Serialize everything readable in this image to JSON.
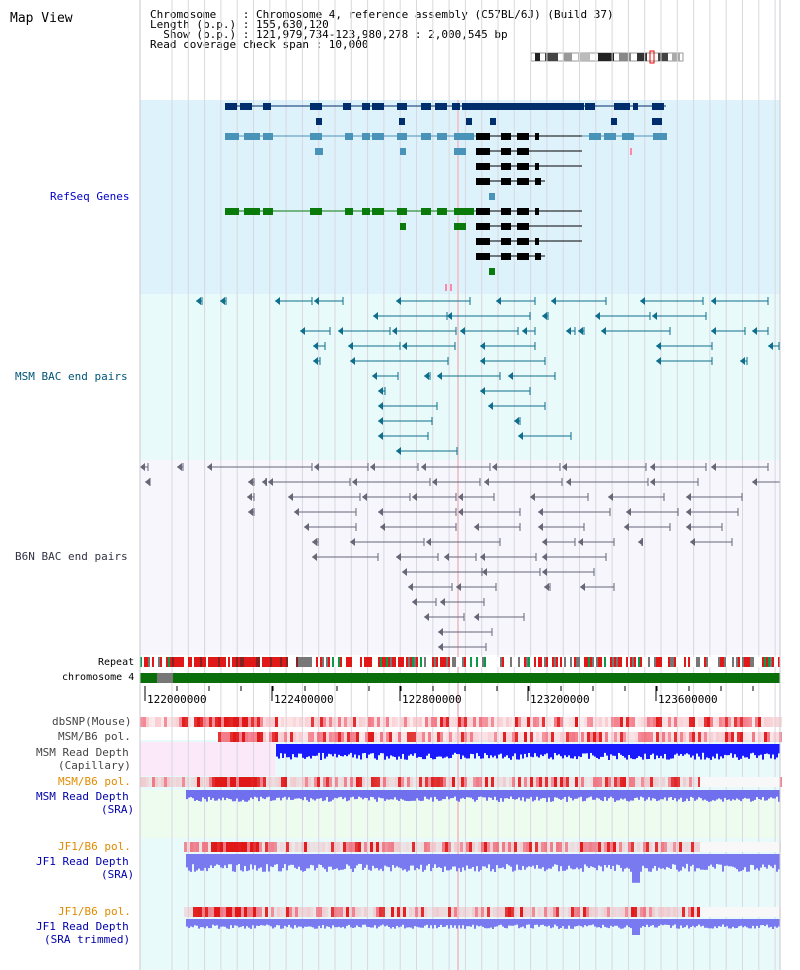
{
  "view": {
    "title": "Map View",
    "info": {
      "chromosome": "Chromosome    : Chromosome 4, reference assembly (C57BL/6J) (Build 37)",
      "length": "Length (b.p.) : 155,630,120",
      "show": "  Show (b.p.) : 121,979,734-123,980,278 : 2,000,545 bp",
      "coverage": "Read coverage check span : 10,000"
    }
  },
  "tracks": {
    "refseq": "RefSeq Genes",
    "msm_bac": "MSM BAC end pairs",
    "b6n_bac": "B6N BAC end pairs",
    "repeat": "Repeat",
    "chromosome": "chromosome 4",
    "dbsnp": "dbSNP(Mouse)",
    "msm_pol1": "MSM/B6 pol.",
    "msm_depth_cap_1": "MSM Read Depth",
    "msm_depth_cap_2": "(Capillary)",
    "msm_pol2": "MSM/B6 pol.",
    "msm_depth_sra_1": "MSM Read Depth",
    "msm_depth_sra_2": "(SRA)",
    "jf1_pol1": "JF1/B6 pol.",
    "jf1_depth_1": "JF1 Read Depth",
    "jf1_depth_2": "(SRA)",
    "jf1_pol2": "JF1/B6 pol.",
    "jf1_trim_1": "JF1 Read Depth",
    "jf1_trim_2": "(SRA trimmed)"
  },
  "axis": {
    "ticks": [
      "122000000",
      "122400000",
      "122800000",
      "123200000",
      "123600000"
    ]
  },
  "colors": {
    "refseq_bg": "#def2fb",
    "msm_bg": "#e8fbfa",
    "b6n_bg": "#f5f5fc",
    "navy": "#002d6b",
    "steel": "#4a93b8",
    "green": "#0a7a0a",
    "chrom": "#0a6e0a",
    "depth_blue": "#1a1aff",
    "label_blue": "#0000cc",
    "label_orange": "#e08a00"
  }
}
